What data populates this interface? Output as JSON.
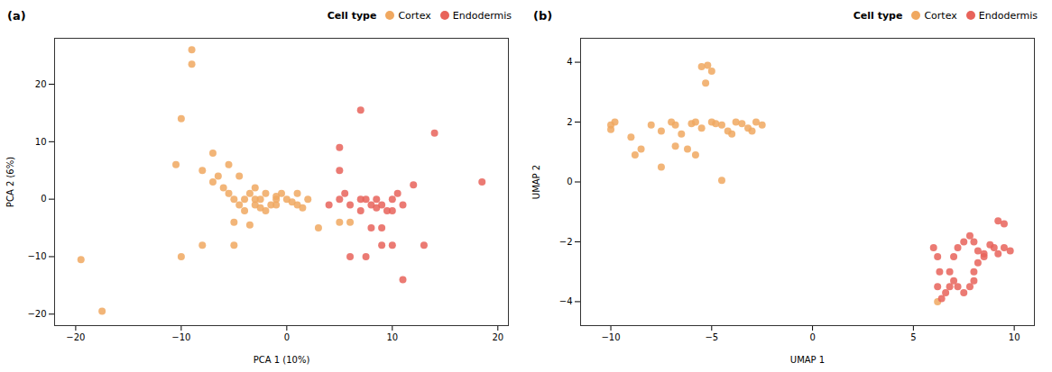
{
  "chart_data": [
    {
      "type": "scatter",
      "title": "(a)",
      "xlabel": "PCA 1 (10%)",
      "ylabel": "PCA 2 (6%)",
      "xlim": [
        -22,
        21
      ],
      "ylim": [
        -22,
        28
      ],
      "xticks": [
        -20,
        -10,
        0,
        10,
        20
      ],
      "yticks": [
        -20,
        -10,
        0,
        10,
        20
      ],
      "legend_title": "Cell type",
      "legend": "upper right",
      "series": [
        {
          "name": "Cortex",
          "color": "#F0A860",
          "values": [
            [
              -19.5,
              -10.5
            ],
            [
              -17.5,
              -19.5
            ],
            [
              -10.5,
              6
            ],
            [
              -10,
              14
            ],
            [
              -9,
              23.5
            ],
            [
              -9,
              26
            ],
            [
              -8,
              5
            ],
            [
              -7,
              3
            ],
            [
              -6.5,
              4
            ],
            [
              -6,
              2
            ],
            [
              -5.5,
              6
            ],
            [
              -5.5,
              1
            ],
            [
              -5,
              0
            ],
            [
              -5,
              -4
            ],
            [
              -5,
              -8
            ],
            [
              -4.5,
              -1
            ],
            [
              -4,
              0
            ],
            [
              -4.5,
              4
            ],
            [
              -4,
              -2
            ],
            [
              -3.5,
              1
            ],
            [
              -3.5,
              -4.5
            ],
            [
              -3,
              2
            ],
            [
              -3,
              0
            ],
            [
              -3,
              -1
            ],
            [
              -2.5,
              0
            ],
            [
              -2.5,
              -1.5
            ],
            [
              -2,
              1
            ],
            [
              -2,
              -2
            ],
            [
              -1.5,
              -1
            ],
            [
              -1,
              0
            ],
            [
              -1,
              0.5
            ],
            [
              -1,
              -1
            ],
            [
              -0.5,
              1
            ],
            [
              0,
              0
            ],
            [
              0.5,
              -0.5
            ],
            [
              1,
              -1
            ],
            [
              1,
              1
            ],
            [
              1.5,
              -1.5
            ],
            [
              2,
              0
            ],
            [
              -8,
              -8
            ],
            [
              -7,
              8
            ],
            [
              -10,
              -10
            ],
            [
              3,
              -5
            ],
            [
              5,
              -4
            ],
            [
              6,
              -4
            ]
          ]
        },
        {
          "name": "Endodermis",
          "color": "#E8635A",
          "values": [
            [
              7,
              15.5
            ],
            [
              5,
              9
            ],
            [
              5,
              5
            ],
            [
              14,
              11.5
            ],
            [
              18.5,
              3
            ],
            [
              4,
              -1
            ],
            [
              5,
              0
            ],
            [
              5.5,
              1
            ],
            [
              6,
              -1
            ],
            [
              7,
              0
            ],
            [
              7.5,
              0
            ],
            [
              7,
              -2
            ],
            [
              8,
              -1
            ],
            [
              8.5,
              0
            ],
            [
              8.5,
              -1.5
            ],
            [
              9,
              -1
            ],
            [
              9,
              -5
            ],
            [
              9.5,
              -2
            ],
            [
              10,
              -2
            ],
            [
              10.5,
              1
            ],
            [
              10,
              0
            ],
            [
              10,
              -8
            ],
            [
              11,
              -1
            ],
            [
              12,
              2.5
            ],
            [
              6,
              -10
            ],
            [
              7.5,
              -10
            ],
            [
              9,
              -8
            ],
            [
              11,
              -14
            ],
            [
              8,
              -5
            ],
            [
              13,
              -8
            ]
          ]
        }
      ]
    },
    {
      "type": "scatter",
      "title": "(b)",
      "xlabel": "UMAP 1",
      "ylabel": "UMAP 2",
      "xlim": [
        -11.5,
        11
      ],
      "ylim": [
        -4.8,
        4.8
      ],
      "xticks": [
        -10,
        -5,
        0,
        5,
        10
      ],
      "yticks": [
        -4,
        -2,
        0,
        2,
        4
      ],
      "legend_title": "Cell type",
      "legend": "upper right",
      "series": [
        {
          "name": "Cortex",
          "color": "#F0A860",
          "values": [
            [
              -9.8,
              2.0
            ],
            [
              -10,
              1.9
            ],
            [
              -10,
              1.75
            ],
            [
              -9,
              1.5
            ],
            [
              -8.8,
              0.9
            ],
            [
              -8.5,
              1.1
            ],
            [
              -8,
              1.9
            ],
            [
              -7.5,
              1.7
            ],
            [
              -7,
              2.0
            ],
            [
              -6.8,
              1.9
            ],
            [
              -6.5,
              1.6
            ],
            [
              -6.2,
              1.1
            ],
            [
              -6,
              1.95
            ],
            [
              -5.8,
              2.0
            ],
            [
              -5.5,
              1.8
            ],
            [
              -5.2,
              3.9
            ],
            [
              -5.5,
              3.85
            ],
            [
              -5.0,
              3.7
            ],
            [
              -5.3,
              3.3
            ],
            [
              -5,
              2.0
            ],
            [
              -4.8,
              1.95
            ],
            [
              -4.5,
              1.9
            ],
            [
              -4.2,
              1.7
            ],
            [
              -4,
              1.6
            ],
            [
              -3.8,
              2.0
            ],
            [
              -3.5,
              1.95
            ],
            [
              -3.2,
              1.8
            ],
            [
              -3,
              1.7
            ],
            [
              -2.8,
              2.0
            ],
            [
              -2.5,
              1.9
            ],
            [
              -7.5,
              0.5
            ],
            [
              -6.8,
              1.2
            ],
            [
              -5.8,
              0.9
            ],
            [
              -4.5,
              0.05
            ],
            [
              6.2,
              -4.0
            ]
          ]
        },
        {
          "name": "Endodermis",
          "color": "#E8635A",
          "values": [
            [
              9.2,
              -1.3
            ],
            [
              9.5,
              -1.4
            ],
            [
              6.0,
              -2.2
            ],
            [
              6.2,
              -2.5
            ],
            [
              6.3,
              -3.0
            ],
            [
              6.2,
              -3.5
            ],
            [
              6.4,
              -3.9
            ],
            [
              6.6,
              -3.7
            ],
            [
              6.8,
              -3.5
            ],
            [
              7.0,
              -3.3
            ],
            [
              7.2,
              -3.5
            ],
            [
              7.5,
              -3.7
            ],
            [
              7.8,
              -3.5
            ],
            [
              8.0,
              -3.3
            ],
            [
              8.0,
              -3.0
            ],
            [
              8.2,
              -2.7
            ],
            [
              8.5,
              -2.5
            ],
            [
              8.5,
              -2.4
            ],
            [
              8.2,
              -2.3
            ],
            [
              8.0,
              -2.0
            ],
            [
              7.8,
              -1.8
            ],
            [
              7.5,
              -2.0
            ],
            [
              7.2,
              -2.2
            ],
            [
              7.0,
              -2.5
            ],
            [
              6.8,
              -3.0
            ],
            [
              9.0,
              -2.2
            ],
            [
              9.2,
              -2.4
            ],
            [
              9.5,
              -2.2
            ],
            [
              9.8,
              -2.3
            ],
            [
              8.8,
              -2.1
            ]
          ]
        }
      ]
    }
  ]
}
